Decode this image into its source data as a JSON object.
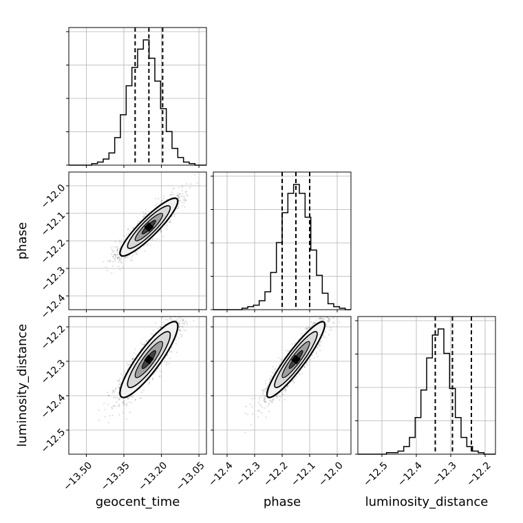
{
  "chart_data": {
    "type": "corner",
    "parameters": [
      "geocent_time",
      "phase",
      "luminosity_distance"
    ],
    "ranges": {
      "geocent_time": [
        -13.57,
        -13.02
      ],
      "phase": [
        -12.45,
        -11.95
      ],
      "luminosity_distance": [
        -12.57,
        -12.17
      ]
    },
    "ticks": {
      "geocent_time": [
        "−13.50",
        "−13.35",
        "−13.20",
        "−13.05"
      ],
      "phase": [
        "−12.4",
        "−12.3",
        "−12.2",
        "−12.1",
        "−12.0"
      ],
      "luminosity_distance": [
        "−12.5",
        "−12.4",
        "−12.3",
        "−12.2"
      ]
    },
    "tick_values": {
      "geocent_time": [
        -13.5,
        -13.35,
        -13.2,
        -13.05
      ],
      "phase": [
        -12.4,
        -12.3,
        -12.2,
        -12.1,
        -12.0
      ],
      "luminosity_distance": [
        -12.5,
        -12.4,
        -12.3,
        -12.2
      ]
    },
    "quantiles": {
      "geocent_time": [
        -13.305,
        -13.25,
        -13.195
      ],
      "phase": [
        -12.2,
        -12.15,
        -12.1
      ],
      "luminosity_distance": [
        -12.345,
        -12.295,
        -12.24
      ]
    },
    "histograms": {
      "geocent_time": [
        0,
        0,
        0,
        0,
        1,
        2,
        4,
        8,
        18,
        33,
        52,
        64,
        76,
        82,
        70,
        55,
        37,
        22,
        11,
        5,
        2,
        1,
        0,
        0
      ],
      "phase": [
        0,
        0,
        0,
        0,
        0,
        1,
        2,
        3,
        6,
        12,
        25,
        45,
        65,
        78,
        84,
        78,
        62,
        40,
        23,
        11,
        4,
        2,
        1,
        0
      ],
      "luminosity_distance": [
        0,
        0,
        0,
        0,
        0,
        1,
        1,
        2,
        5,
        11,
        24,
        42,
        63,
        78,
        82,
        66,
        43,
        24,
        11,
        5,
        2,
        1,
        0,
        0
      ]
    },
    "correlation": {
      "phase__geocent_time": 0.9,
      "luminosity_distance__geocent_time": 0.88,
      "luminosity_distance__phase": 0.92
    },
    "grid": true
  }
}
